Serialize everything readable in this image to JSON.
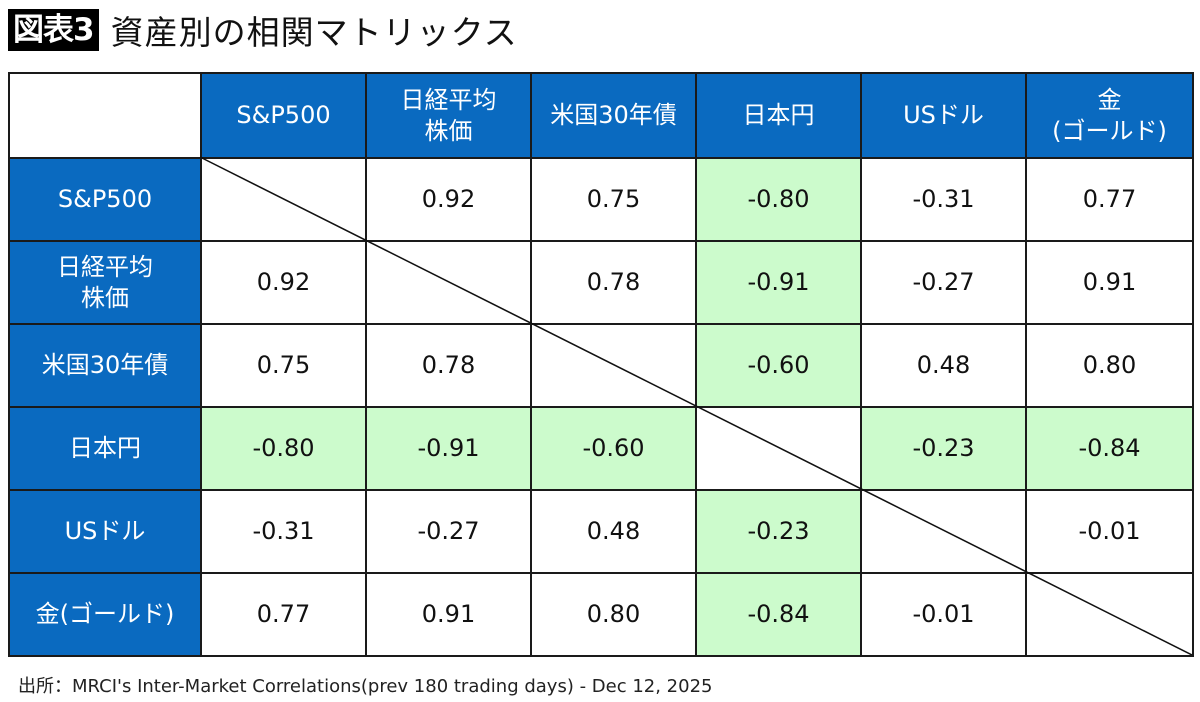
{
  "title": {
    "badge": "図表3",
    "text": "資産別の相関マトリックス"
  },
  "chart_data": {
    "type": "table",
    "columns": [
      "S&P500",
      "日経平均\n株価",
      "米国30年債",
      "日本円",
      "USドル",
      "金\n(ゴールド)"
    ],
    "rows": [
      {
        "label": "S&P500",
        "values": [
          null,
          "0.92",
          "0.75",
          "-0.80",
          "-0.31",
          "0.77"
        ]
      },
      {
        "label": "日経平均\n株価",
        "values": [
          "0.92",
          null,
          "0.78",
          "-0.91",
          "-0.27",
          "0.91"
        ]
      },
      {
        "label": "米国30年債",
        "values": [
          "0.75",
          "0.78",
          null,
          "-0.60",
          "0.48",
          "0.80"
        ]
      },
      {
        "label": "日本円",
        "values": [
          "-0.80",
          "-0.91",
          "-0.60",
          null,
          "-0.23",
          "-0.84"
        ]
      },
      {
        "label": "USドル",
        "values": [
          "-0.31",
          "-0.27",
          "0.48",
          "-0.23",
          null,
          "-0.01"
        ]
      },
      {
        "label": "金(ゴールド)",
        "values": [
          "0.77",
          "0.91",
          "0.80",
          "-0.84",
          "-0.01",
          null
        ]
      }
    ],
    "highlight_index": 3,
    "colors": {
      "header": "#0a6ac0",
      "highlight": "#ccfbcc"
    }
  },
  "source": "出所：MRCI's Inter-Market Correlations(prev 180 trading days) - Dec 12, 2025"
}
